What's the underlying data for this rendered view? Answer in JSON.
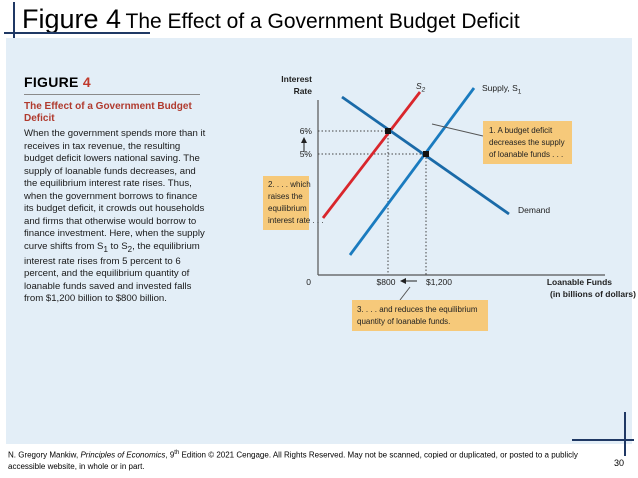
{
  "slide": {
    "title_prefix": "Figure 4",
    "title_rest": "The Effect of a Government Budget Deficit",
    "page_number": "30"
  },
  "figure": {
    "label_word": "FIGURE",
    "label_number": "4",
    "heading": "The Effect of a Government Budget Deficit",
    "caption_parts": [
      "When the government spends more than it receives in tax revenue, the resulting budget deficit lowers national saving. The supply of loanable funds decreases, and the equilibrium interest rate rises. Thus, when the government borrows to finance its budget deficit, it crowds out households and firms that otherwise would borrow to finance investment. Here, when the supply curve shifts from S",
      "1",
      " to S",
      "2",
      ", the equilibrium interest rate rises from 5 percent to 6 percent, and the equilibrium quantity of loanable funds saved and invested falls from $1,200 billion to $800 billion."
    ]
  },
  "graph": {
    "y_axis_label": [
      "Interest",
      "Rate"
    ],
    "x_axis_label": [
      "Loanable Funds",
      "(in billions of dollars)"
    ],
    "origin_label": "0",
    "supply_new_label": "S",
    "supply_new_sub": "2",
    "supply_old_label": "Supply, S",
    "supply_old_sub": "1",
    "demand_label": "Demand",
    "y_tick_high": "6%",
    "y_tick_low": "5%",
    "x_tick_low": "$800",
    "x_tick_high": "$1,200",
    "callout1": [
      "1. A budget deficit",
      "decreases the supply",
      "of loanable funds . . ."
    ],
    "callout2": [
      "2. . . . which",
      "raises the",
      "equilibrium",
      "interest rate . . ."
    ],
    "callout3": [
      "3. . . . and reduces the equilibrium",
      "quantity of loanable funds."
    ],
    "colors": {
      "supply_new": "#d9262c",
      "supply_old": "#1a7bbf",
      "demand": "#1a6aa8",
      "callout_fill": "#f6c97a",
      "accent_heading": "#b03a2e",
      "panel": "#e3eef7"
    }
  },
  "chart_data": {
    "type": "line",
    "title": "The Effect of a Government Budget Deficit",
    "xlabel": "Loanable Funds (in billions of dollars)",
    "ylabel": "Interest Rate",
    "x_ticks": [
      "$800",
      "$1,200"
    ],
    "y_ticks": [
      "5%",
      "6%"
    ],
    "equilibria": [
      {
        "curve": "Supply, S1",
        "quantity": 1200,
        "interest_rate": 5
      },
      {
        "curve": "S2",
        "quantity": 800,
        "interest_rate": 6
      }
    ],
    "series": [
      {
        "name": "Supply, S1"
      },
      {
        "name": "S2"
      },
      {
        "name": "Demand"
      }
    ]
  },
  "footer": {
    "author": "N. Gregory Mankiw, ",
    "book": "Principles of Economics",
    "edition_pre": ", 9",
    "edition_sup": "th",
    "rest": " Edition © 2021 Cengage. All Rights Reserved. May not be scanned, copied or duplicated, or posted to a publicly accessible website, in whole or in part."
  }
}
